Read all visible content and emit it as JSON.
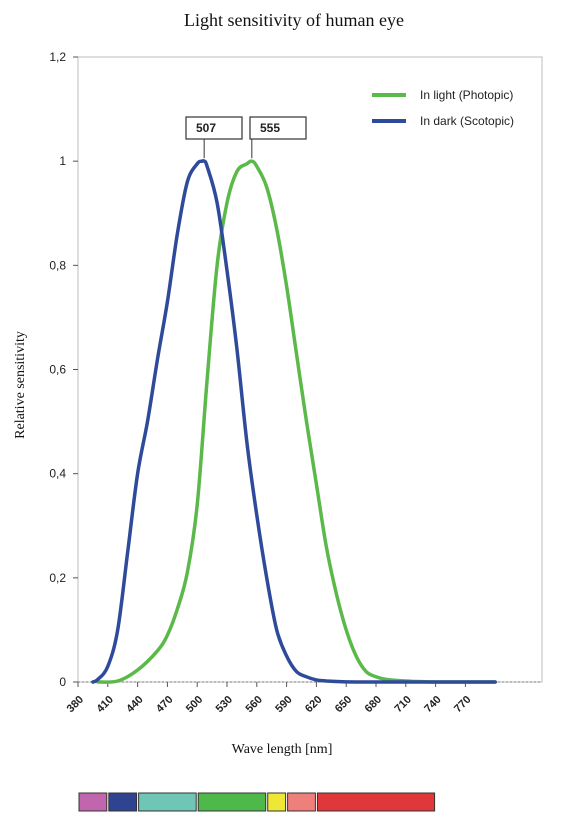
{
  "chart_data": {
    "type": "line",
    "title": "Light sensitivity of human eye",
    "xlabel": "Wave length [nm]",
    "ylabel": "Relative sensitivity",
    "xlim": [
      380,
      800
    ],
    "ylim": [
      0,
      1.2
    ],
    "x_ticks": [
      "380",
      "410",
      "440",
      "470",
      "500",
      "530",
      "560",
      "590",
      "620",
      "650",
      "680",
      "710",
      "740",
      "770"
    ],
    "y_ticks": [
      "0",
      "0,2",
      "0,4",
      "0,6",
      "0,8",
      "1",
      "1,2"
    ],
    "legend_position": "top-right",
    "grid": false,
    "series": [
      {
        "name": "In light (Photopic)",
        "color": "#5bb94a",
        "peak_label": "555",
        "peak_x": 555,
        "x": [
          400,
          420,
          440,
          460,
          470,
          480,
          490,
          500,
          510,
          520,
          530,
          540,
          550,
          555,
          560,
          570,
          580,
          590,
          600,
          610,
          620,
          630,
          640,
          650,
          660,
          670,
          680,
          690,
          700,
          720,
          740,
          760,
          780,
          800
        ],
        "y": [
          0.0,
          0.002,
          0.023,
          0.06,
          0.09,
          0.14,
          0.21,
          0.34,
          0.58,
          0.8,
          0.92,
          0.98,
          0.995,
          1.0,
          0.99,
          0.95,
          0.87,
          0.76,
          0.63,
          0.5,
          0.38,
          0.26,
          0.17,
          0.1,
          0.05,
          0.02,
          0.01,
          0.005,
          0.003,
          0.001,
          0.0,
          0.0,
          0.0,
          0.0
        ]
      },
      {
        "name": "In dark (Scotopic)",
        "color": "#2e4a9a",
        "peak_label": "507",
        "peak_x": 507,
        "x": [
          395,
          400,
          410,
          420,
          430,
          440,
          450,
          460,
          470,
          480,
          490,
          500,
          505,
          507,
          510,
          520,
          530,
          540,
          550,
          560,
          570,
          580,
          590,
          600,
          610,
          620,
          630,
          640,
          660,
          700,
          800
        ],
        "y": [
          0.0,
          0.005,
          0.03,
          0.1,
          0.25,
          0.4,
          0.5,
          0.62,
          0.73,
          0.86,
          0.96,
          0.995,
          1.0,
          1.0,
          0.99,
          0.92,
          0.79,
          0.64,
          0.46,
          0.32,
          0.2,
          0.1,
          0.05,
          0.02,
          0.01,
          0.004,
          0.002,
          0.001,
          0.0,
          0.0,
          0.0
        ]
      }
    ],
    "spectrum_bar": [
      {
        "color": "#c166ae",
        "from": 380,
        "to": 410
      },
      {
        "color": "#2f4391",
        "from": 410,
        "to": 440
      },
      {
        "color": "#6fc6b5",
        "from": 440,
        "to": 500
      },
      {
        "color": "#4fb84a",
        "from": 500,
        "to": 570
      },
      {
        "color": "#eee735",
        "from": 570,
        "to": 590
      },
      {
        "color": "#ee7f7b",
        "from": 590,
        "to": 620
      },
      {
        "color": "#e0383a",
        "from": 620,
        "to": 740
      }
    ]
  }
}
